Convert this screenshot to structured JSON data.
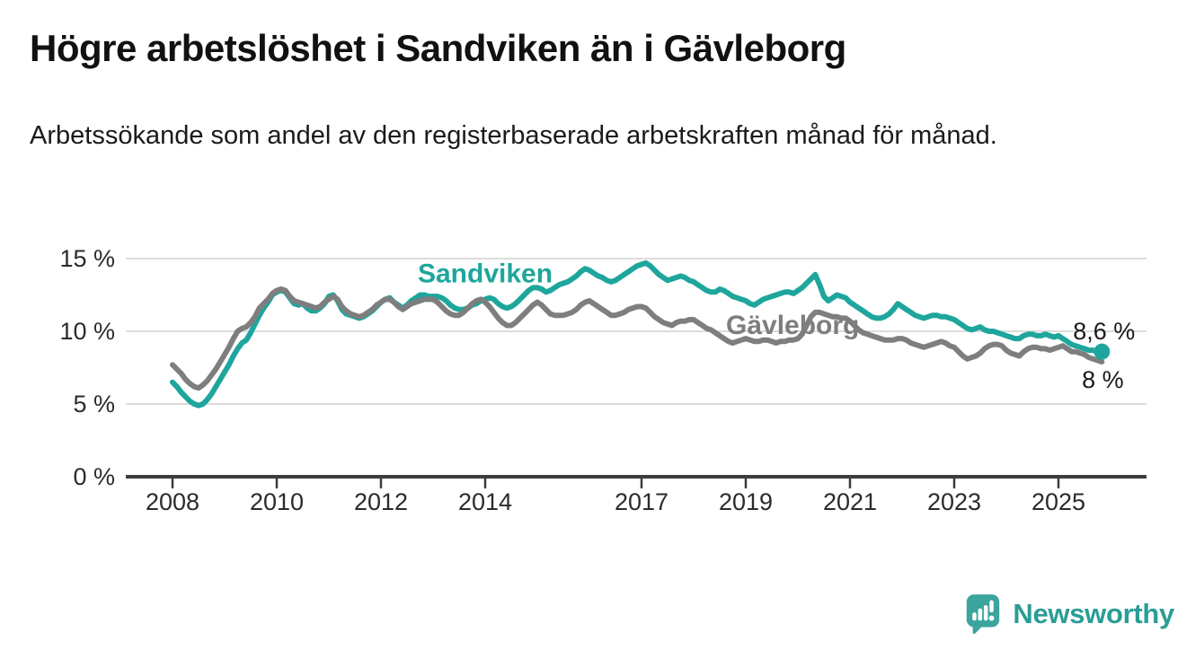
{
  "header": {
    "title": "Högre arbetslöshet i Sandviken än i Gävleborg",
    "subtitle": "Arbetssökande som andel av den registerbaserade arbetskraften månad för månad."
  },
  "chart_data": {
    "type": "line",
    "title": "Högre arbetslöshet i Sandviken än i Gävleborg",
    "subtitle": "Arbetssökande som andel av den registerbaserade arbetskraften månad för månad.",
    "unit": "%",
    "grid": "horizontal",
    "legend_position": "inline-labels",
    "xlim": [
      2007.1,
      2026.7
    ],
    "ylim": [
      0,
      16.1
    ],
    "x_ticks": [
      2008,
      2010,
      2012,
      2014,
      2017,
      2019,
      2021,
      2023,
      2025
    ],
    "y_ticks": [
      {
        "value": 0,
        "label": "0 %"
      },
      {
        "value": 5,
        "label": "5 %"
      },
      {
        "value": 10,
        "label": "10 %"
      },
      {
        "value": 15,
        "label": "15 %"
      }
    ],
    "colors": {
      "sandviken": "#1ea69d",
      "gavleborg": "#7e7e7e",
      "grid": "#dcdcdc",
      "axis": "#3d3d3d"
    },
    "series": [
      {
        "name": "Sandviken",
        "color": "#1ea69d",
        "x_start": 2008.0,
        "x_step": 0.0833,
        "end_label": "8,6 %",
        "end_dot": true,
        "label_at": [
          2014.0,
          13.35
        ],
        "end_label_at": [
          2025.28,
          9.45
        ],
        "values": [
          6.5,
          6.2,
          5.8,
          5.5,
          5.2,
          5.0,
          4.9,
          5.0,
          5.3,
          5.7,
          6.2,
          6.7,
          7.2,
          7.7,
          8.3,
          8.8,
          9.2,
          9.4,
          9.9,
          10.5,
          11.1,
          11.6,
          12.0,
          12.5,
          12.7,
          12.8,
          12.7,
          12.3,
          11.9,
          11.8,
          11.9,
          11.6,
          11.4,
          11.4,
          11.6,
          11.9,
          12.4,
          12.5,
          12.1,
          11.5,
          11.2,
          11.1,
          11.0,
          10.9,
          11.0,
          11.2,
          11.4,
          11.7,
          12.0,
          12.2,
          12.3,
          12.0,
          11.8,
          11.6,
          11.8,
          12.1,
          12.3,
          12.5,
          12.5,
          12.4,
          12.4,
          12.4,
          12.3,
          12.1,
          11.8,
          11.6,
          11.5,
          11.5,
          11.6,
          11.8,
          11.9,
          12.1,
          12.2,
          12.3,
          12.2,
          11.9,
          11.7,
          11.6,
          11.7,
          11.9,
          12.2,
          12.5,
          12.8,
          13.0,
          13.0,
          12.9,
          12.7,
          12.8,
          13.0,
          13.2,
          13.3,
          13.4,
          13.6,
          13.8,
          14.1,
          14.3,
          14.2,
          14.0,
          13.8,
          13.7,
          13.5,
          13.4,
          13.5,
          13.7,
          13.9,
          14.1,
          14.3,
          14.5,
          14.6,
          14.7,
          14.5,
          14.2,
          13.9,
          13.7,
          13.5,
          13.6,
          13.7,
          13.8,
          13.7,
          13.5,
          13.4,
          13.2,
          13.0,
          12.8,
          12.7,
          12.7,
          12.9,
          12.8,
          12.6,
          12.4,
          12.3,
          12.2,
          12.1,
          11.9,
          11.8,
          12.0,
          12.2,
          12.3,
          12.4,
          12.5,
          12.6,
          12.7,
          12.7,
          12.6,
          12.8,
          13.0,
          13.3,
          13.6,
          13.9,
          13.2,
          12.4,
          12.1,
          12.3,
          12.5,
          12.4,
          12.3,
          12.0,
          11.8,
          11.6,
          11.4,
          11.2,
          11.0,
          10.9,
          10.9,
          11.0,
          11.2,
          11.5,
          11.9,
          11.7,
          11.5,
          11.3,
          11.1,
          11.0,
          10.9,
          11.0,
          11.1,
          11.1,
          11.0,
          11.0,
          10.9,
          10.8,
          10.6,
          10.4,
          10.2,
          10.1,
          10.2,
          10.3,
          10.1,
          10.0,
          10.0,
          9.9,
          9.8,
          9.7,
          9.6,
          9.5,
          9.5,
          9.7,
          9.8,
          9.8,
          9.7,
          9.7,
          9.8,
          9.7,
          9.6,
          9.7,
          9.5,
          9.3,
          9.1,
          9.0,
          8.9,
          8.8,
          8.7,
          8.7,
          8.6,
          8.6
        ]
      },
      {
        "name": "Gävleborg",
        "color": "#7e7e7e",
        "x_start": 2008.0,
        "x_step": 0.0833,
        "end_label": "8 %",
        "end_dot": false,
        "label_at": [
          2019.9,
          9.82
        ],
        "end_label_at": [
          2025.45,
          6.1
        ],
        "values": [
          7.7,
          7.4,
          7.1,
          6.7,
          6.4,
          6.2,
          6.1,
          6.3,
          6.6,
          7.0,
          7.4,
          7.9,
          8.4,
          8.9,
          9.5,
          10.0,
          10.2,
          10.3,
          10.6,
          11.0,
          11.6,
          11.9,
          12.2,
          12.6,
          12.8,
          12.9,
          12.8,
          12.4,
          12.1,
          12.0,
          11.9,
          11.8,
          11.7,
          11.6,
          11.7,
          12.0,
          12.2,
          12.4,
          12.2,
          11.7,
          11.4,
          11.2,
          11.1,
          11.0,
          11.1,
          11.3,
          11.5,
          11.8,
          12.0,
          12.2,
          12.2,
          12.0,
          11.7,
          11.5,
          11.7,
          11.9,
          12.0,
          12.1,
          12.2,
          12.2,
          12.2,
          12.0,
          11.7,
          11.4,
          11.2,
          11.1,
          11.1,
          11.3,
          11.6,
          11.9,
          12.1,
          12.2,
          12.0,
          11.7,
          11.3,
          10.9,
          10.6,
          10.4,
          10.4,
          10.6,
          10.9,
          11.2,
          11.5,
          11.8,
          12.0,
          11.8,
          11.5,
          11.2,
          11.1,
          11.1,
          11.1,
          11.2,
          11.3,
          11.5,
          11.8,
          12.0,
          12.1,
          11.9,
          11.7,
          11.5,
          11.3,
          11.1,
          11.1,
          11.2,
          11.3,
          11.5,
          11.6,
          11.7,
          11.7,
          11.6,
          11.3,
          11.0,
          10.8,
          10.6,
          10.5,
          10.4,
          10.6,
          10.7,
          10.7,
          10.8,
          10.8,
          10.6,
          10.4,
          10.2,
          10.1,
          9.9,
          9.7,
          9.5,
          9.3,
          9.2,
          9.3,
          9.4,
          9.5,
          9.4,
          9.3,
          9.3,
          9.4,
          9.4,
          9.3,
          9.2,
          9.3,
          9.3,
          9.4,
          9.4,
          9.5,
          9.8,
          10.4,
          11.0,
          11.3,
          11.3,
          11.2,
          11.1,
          11.0,
          11.0,
          10.9,
          10.9,
          10.7,
          10.4,
          10.1,
          9.9,
          9.8,
          9.7,
          9.6,
          9.5,
          9.4,
          9.4,
          9.4,
          9.5,
          9.5,
          9.4,
          9.2,
          9.1,
          9.0,
          8.9,
          9.0,
          9.1,
          9.2,
          9.3,
          9.2,
          9.0,
          8.9,
          8.6,
          8.3,
          8.1,
          8.2,
          8.3,
          8.5,
          8.8,
          9.0,
          9.1,
          9.1,
          9.0,
          8.7,
          8.5,
          8.4,
          8.3,
          8.6,
          8.8,
          8.9,
          8.9,
          8.8,
          8.8,
          8.7,
          8.8,
          8.9,
          9.0,
          8.8,
          8.6,
          8.6,
          8.5,
          8.4,
          8.2,
          8.1,
          8.0,
          7.9
        ]
      }
    ]
  },
  "footer": {
    "brand": "Newsworthy"
  }
}
